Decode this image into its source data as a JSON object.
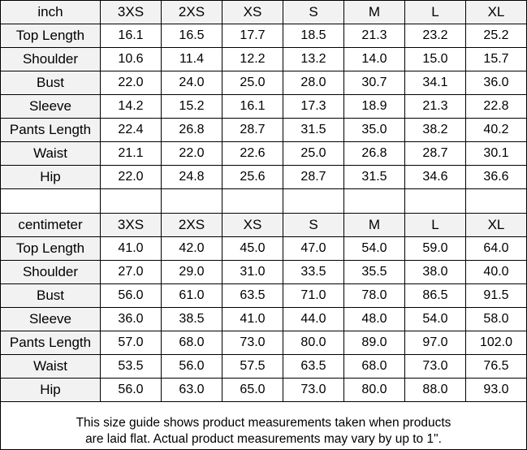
{
  "table": {
    "sizes": [
      "3XS",
      "2XS",
      "XS",
      "S",
      "M",
      "L",
      "XL"
    ],
    "inch": {
      "unit_label": "inch",
      "rows": [
        {
          "label": "Top Length",
          "values": [
            "16.1",
            "16.5",
            "17.7",
            "18.5",
            "21.3",
            "23.2",
            "25.2"
          ]
        },
        {
          "label": "Shoulder",
          "values": [
            "10.6",
            "11.4",
            "12.2",
            "13.2",
            "14.0",
            "15.0",
            "15.7"
          ]
        },
        {
          "label": "Bust",
          "values": [
            "22.0",
            "24.0",
            "25.0",
            "28.0",
            "30.7",
            "34.1",
            "36.0"
          ]
        },
        {
          "label": "Sleeve",
          "values": [
            "14.2",
            "15.2",
            "16.1",
            "17.3",
            "18.9",
            "21.3",
            "22.8"
          ]
        },
        {
          "label": "Pants Length",
          "values": [
            "22.4",
            "26.8",
            "28.7",
            "31.5",
            "35.0",
            "38.2",
            "40.2"
          ]
        },
        {
          "label": "Waist",
          "values": [
            "21.1",
            "22.0",
            "22.6",
            "25.0",
            "26.8",
            "28.7",
            "30.1"
          ]
        },
        {
          "label": "Hip",
          "values": [
            "22.0",
            "24.8",
            "25.6",
            "28.7",
            "31.5",
            "34.6",
            "36.6"
          ]
        }
      ]
    },
    "centimeter": {
      "unit_label": "centimeter",
      "rows": [
        {
          "label": "Top Length",
          "values": [
            "41.0",
            "42.0",
            "45.0",
            "47.0",
            "54.0",
            "59.0",
            "64.0"
          ]
        },
        {
          "label": "Shoulder",
          "values": [
            "27.0",
            "29.0",
            "31.0",
            "33.5",
            "35.5",
            "38.0",
            "40.0"
          ]
        },
        {
          "label": "Bust",
          "values": [
            "56.0",
            "61.0",
            "63.5",
            "71.0",
            "78.0",
            "86.5",
            "91.5"
          ]
        },
        {
          "label": "Sleeve",
          "values": [
            "36.0",
            "38.5",
            "41.0",
            "44.0",
            "48.0",
            "54.0",
            "58.0"
          ]
        },
        {
          "label": "Pants Length",
          "values": [
            "57.0",
            "68.0",
            "73.0",
            "80.0",
            "89.0",
            "97.0",
            "102.0"
          ]
        },
        {
          "label": "Waist",
          "values": [
            "53.5",
            "56.0",
            "57.5",
            "63.5",
            "68.0",
            "73.0",
            "76.5"
          ]
        },
        {
          "label": "Hip",
          "values": [
            "56.0",
            "63.0",
            "65.0",
            "73.0",
            "80.0",
            "88.0",
            "93.0"
          ]
        }
      ]
    },
    "footnote_line1": "This size guide shows product measurements taken when products",
    "footnote_line2": "are laid flat. Actual product measurements may vary by up to 1\".",
    "colors": {
      "header_bg": "#f2f2f2",
      "border": "#000000",
      "text": "#000000",
      "cell_bg": "#ffffff"
    }
  }
}
